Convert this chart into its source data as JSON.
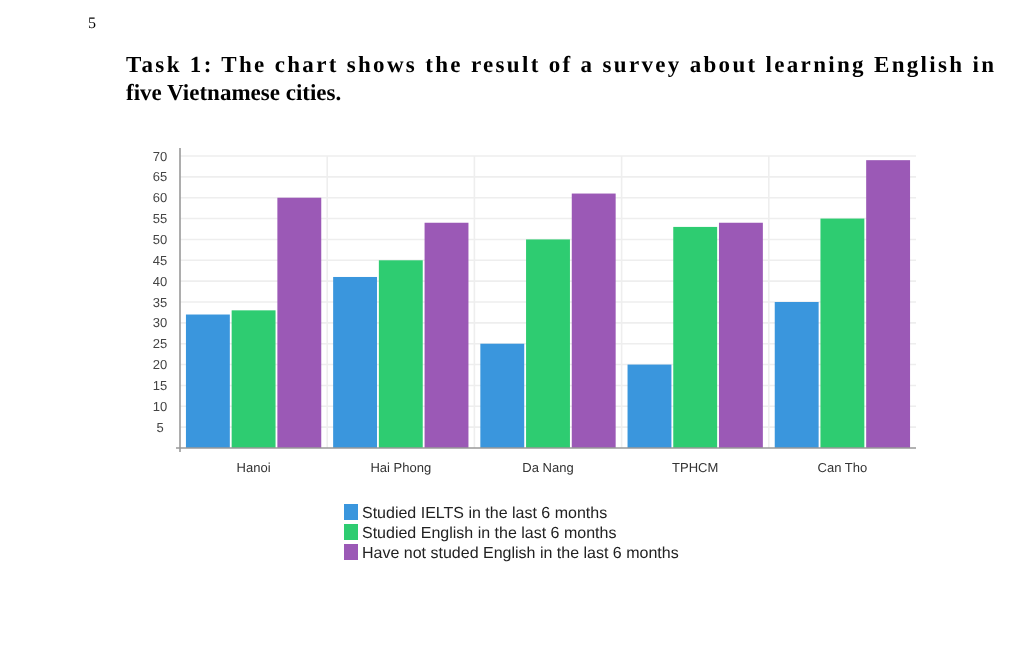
{
  "chart_data": {
    "type": "bar",
    "title": "Task 1: The chart shows the result of a survey about learning English in five Vietnamese cities.",
    "annotations": [
      "5"
    ],
    "categories": [
      "Hanoi",
      "Hai Phong",
      "Da Nang",
      "TPHCM",
      "Can Tho"
    ],
    "series": [
      {
        "name": "Studied IELTS in the last 6 months",
        "color": "#3a96dd",
        "values": [
          32,
          41,
          25,
          20,
          35
        ]
      },
      {
        "name": "Studied English in the last 6 months",
        "color": "#2ecc71",
        "values": [
          33,
          45,
          50,
          53,
          55
        ]
      },
      {
        "name": "Have not studed English in the last 6 months",
        "color": "#9b59b6",
        "values": [
          60,
          54,
          61,
          54,
          69
        ]
      }
    ],
    "ylim": [
      0,
      70
    ],
    "yticks": [
      5,
      10,
      15,
      20,
      25,
      30,
      35,
      40,
      45,
      50,
      55,
      60,
      65,
      70
    ],
    "grid": true,
    "legend": "bottom"
  }
}
